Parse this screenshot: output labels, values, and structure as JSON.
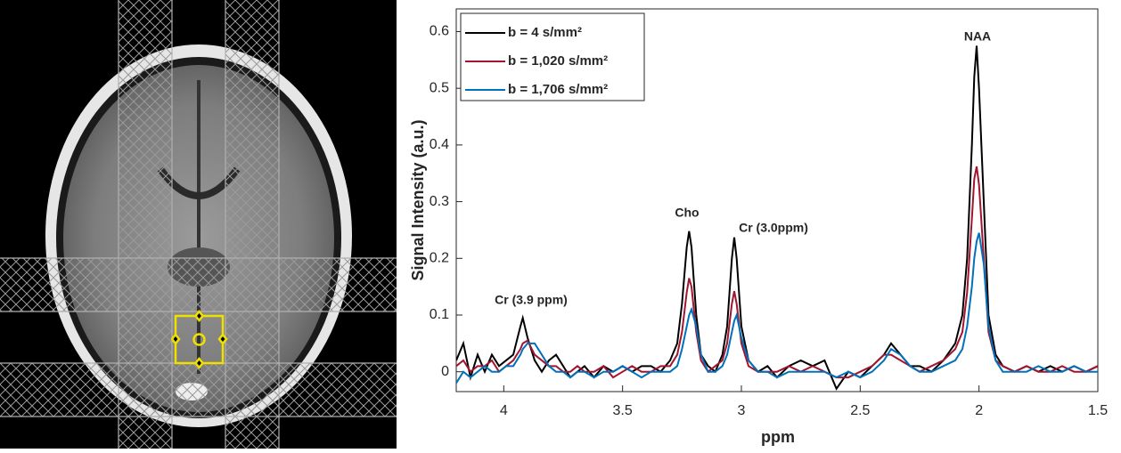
{
  "chart_data": {
    "type": "line",
    "xlabel": "ppm",
    "ylabel": "Signal Intensity (a.u.)",
    "xlim": [
      4.2,
      1.5
    ],
    "xticks": [
      4,
      3.5,
      3,
      2.5,
      2,
      1.5
    ],
    "ylim": [
      -0.035,
      0.64
    ],
    "yticks": [
      0,
      0.1,
      0.2,
      0.3,
      0.4,
      0.5,
      0.6
    ],
    "legend": "upper-left",
    "annotations": [
      "Cr (3.9 ppm)",
      "Cho",
      "Cr (3.0ppm)",
      "NAA"
    ],
    "x": [
      4.2,
      4.17,
      4.14,
      4.11,
      4.08,
      4.05,
      4.02,
      3.99,
      3.96,
      3.93,
      3.92,
      3.9,
      3.87,
      3.84,
      3.81,
      3.78,
      3.75,
      3.72,
      3.69,
      3.66,
      3.62,
      3.58,
      3.54,
      3.5,
      3.46,
      3.42,
      3.38,
      3.34,
      3.3,
      3.27,
      3.25,
      3.23,
      3.22,
      3.21,
      3.19,
      3.17,
      3.14,
      3.11,
      3.08,
      3.06,
      3.04,
      3.03,
      3.02,
      3.0,
      2.97,
      2.93,
      2.89,
      2.85,
      2.8,
      2.75,
      2.7,
      2.65,
      2.6,
      2.55,
      2.5,
      2.45,
      2.4,
      2.37,
      2.33,
      2.29,
      2.25,
      2.2,
      2.15,
      2.1,
      2.07,
      2.05,
      2.03,
      2.02,
      2.01,
      2.0,
      1.98,
      1.96,
      1.93,
      1.9,
      1.85,
      1.8,
      1.75,
      1.7,
      1.65,
      1.6,
      1.55,
      1.5
    ],
    "series": [
      {
        "name": "b = 4 s/mm²",
        "color": "#000000",
        "values": [
          0.02,
          0.05,
          -0.01,
          0.03,
          0.0,
          0.03,
          0.01,
          0.02,
          0.03,
          0.08,
          0.095,
          0.06,
          0.02,
          0.0,
          0.02,
          0.03,
          0.01,
          -0.01,
          0.0,
          0.01,
          -0.01,
          0.01,
          0.0,
          0.01,
          0.0,
          0.01,
          0.01,
          0.0,
          0.02,
          0.05,
          0.12,
          0.22,
          0.248,
          0.22,
          0.1,
          0.03,
          0.01,
          0.0,
          0.03,
          0.08,
          0.2,
          0.237,
          0.2,
          0.08,
          0.02,
          0.0,
          0.01,
          -0.01,
          0.01,
          0.02,
          0.01,
          0.02,
          -0.03,
          0.0,
          -0.01,
          0.01,
          0.03,
          0.05,
          0.03,
          0.01,
          0.01,
          0.0,
          0.02,
          0.05,
          0.1,
          0.2,
          0.4,
          0.52,
          0.575,
          0.5,
          0.3,
          0.1,
          0.03,
          0.01,
          0.0,
          0.01,
          0.0,
          0.01,
          0.0,
          0.01,
          0.0,
          0.01
        ]
      },
      {
        "name": "b = 1,020 s/mm²",
        "color": "#a2142f",
        "values": [
          0.01,
          0.02,
          0.0,
          0.01,
          0.01,
          0.02,
          0.0,
          0.01,
          0.02,
          0.04,
          0.05,
          0.055,
          0.03,
          0.02,
          0.01,
          0.01,
          0.0,
          0.0,
          0.01,
          0.0,
          0.0,
          0.01,
          -0.01,
          0.0,
          0.01,
          0.0,
          0.0,
          0.01,
          0.01,
          0.03,
          0.07,
          0.14,
          0.165,
          0.15,
          0.07,
          0.02,
          0.0,
          0.01,
          0.02,
          0.05,
          0.12,
          0.142,
          0.12,
          0.05,
          0.01,
          0.0,
          0.0,
          0.0,
          0.01,
          0.0,
          0.01,
          0.0,
          -0.01,
          -0.01,
          0.0,
          0.01,
          0.03,
          0.03,
          0.02,
          0.01,
          0.0,
          0.01,
          0.02,
          0.04,
          0.07,
          0.14,
          0.27,
          0.34,
          0.362,
          0.33,
          0.2,
          0.07,
          0.02,
          0.01,
          0.0,
          0.01,
          0.0,
          0.0,
          0.01,
          0.0,
          0.0,
          0.01
        ]
      },
      {
        "name": "b = 1,706 s/mm²",
        "color": "#0072bd",
        "values": [
          -0.02,
          0.0,
          -0.01,
          0.0,
          0.01,
          0.0,
          0.0,
          0.01,
          0.01,
          0.03,
          0.04,
          0.05,
          0.05,
          0.03,
          0.01,
          0.0,
          0.0,
          -0.01,
          0.0,
          0.0,
          -0.01,
          0.0,
          0.0,
          0.01,
          0.0,
          -0.01,
          0.0,
          0.0,
          0.0,
          0.01,
          0.04,
          0.08,
          0.1,
          0.11,
          0.08,
          0.03,
          0.0,
          0.0,
          0.01,
          0.03,
          0.07,
          0.09,
          0.1,
          0.06,
          0.02,
          0.0,
          0.0,
          -0.01,
          0.0,
          0.0,
          0.0,
          0.0,
          -0.01,
          0.0,
          -0.01,
          0.0,
          0.02,
          0.04,
          0.03,
          0.01,
          0.0,
          0.0,
          0.01,
          0.02,
          0.04,
          0.08,
          0.15,
          0.2,
          0.23,
          0.245,
          0.19,
          0.08,
          0.02,
          0.0,
          0.0,
          0.0,
          0.01,
          0.0,
          0.0,
          0.01,
          0.0,
          0.0
        ]
      }
    ]
  }
}
